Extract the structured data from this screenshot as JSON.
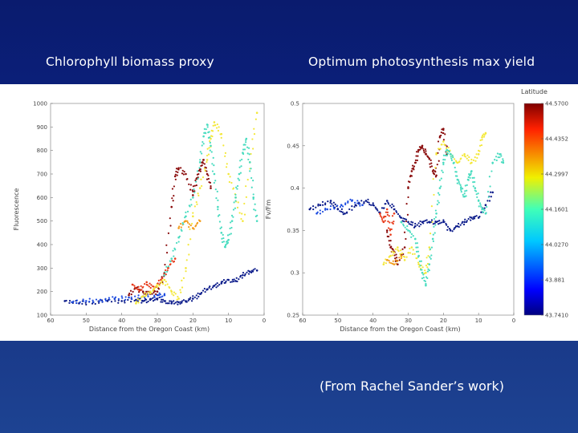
{
  "header": {
    "left_title": "Chlorophyll biomass proxy",
    "right_title": "Optimum photosynthesis max yield"
  },
  "credit": "(From Rachel Sander’s work)",
  "colors": {
    "background_top": "#0a1b6e",
    "background_bottom": "#1d4392",
    "panel": "#ffffff"
  },
  "chart_data": [
    {
      "type": "scatter",
      "title": "",
      "xlabel": "Distance from the Oregon Coast (km)",
      "ylabel": "Fluorescence",
      "xlim": [
        60,
        0
      ],
      "ylim": [
        100,
        1000
      ],
      "x_ticks": [
        60,
        50,
        40,
        30,
        20,
        10,
        0
      ],
      "y_ticks": [
        100,
        200,
        300,
        400,
        500,
        600,
        700,
        800,
        900,
        1000
      ],
      "series": [
        {
          "color": "#0a1a8a",
          "points": [
            [
              56,
              160
            ],
            [
              52,
              150
            ],
            [
              48,
              155
            ],
            [
              44,
              160
            ],
            [
              40,
              160
            ],
            [
              36,
              165
            ],
            [
              34,
              160
            ],
            [
              32,
              165
            ],
            [
              30,
              170
            ],
            [
              28,
              160
            ],
            [
              26,
              150
            ],
            [
              24,
              155
            ],
            [
              22,
              160
            ],
            [
              20,
              170
            ],
            [
              18,
              190
            ],
            [
              16,
              210
            ],
            [
              14,
              225
            ],
            [
              12,
              235
            ],
            [
              10,
              250
            ],
            [
              8,
              245
            ],
            [
              6,
              270
            ],
            [
              4,
              285
            ],
            [
              2,
              290
            ]
          ]
        },
        {
          "color": "#1c4be0",
          "points": [
            [
              54,
              155
            ],
            [
              50,
              160
            ],
            [
              46,
              165
            ],
            [
              42,
              170
            ],
            [
              38,
              175
            ],
            [
              34,
              180
            ],
            [
              30,
              185
            ],
            [
              28,
              185
            ]
          ]
        },
        {
          "color": "#8b0d0d",
          "points": [
            [
              38,
              185
            ],
            [
              36,
              215
            ],
            [
              34,
              200
            ],
            [
              32,
              190
            ],
            [
              30,
              200
            ],
            [
              28,
              280
            ],
            [
              26,
              560
            ],
            [
              25,
              690
            ],
            [
              24,
              725
            ],
            [
              22,
              700
            ],
            [
              20,
              610
            ],
            [
              19,
              680
            ],
            [
              18,
              720
            ],
            [
              17,
              760
            ],
            [
              16,
              700
            ],
            [
              15,
              640
            ]
          ]
        },
        {
          "color": "#e83a1a",
          "points": [
            [
              37,
              230
            ],
            [
              35,
              205
            ],
            [
              33,
              240
            ],
            [
              31,
              210
            ],
            [
              29,
              250
            ],
            [
              27,
              300
            ],
            [
              25,
              340
            ]
          ]
        },
        {
          "color": "#f4e83a",
          "points": [
            [
              36,
              150
            ],
            [
              34,
              180
            ],
            [
              32,
              200
            ],
            [
              30,
              220
            ],
            [
              28,
              250
            ],
            [
              26,
              200
            ],
            [
              24,
              170
            ],
            [
              22,
              300
            ],
            [
              20,
              520
            ],
            [
              18,
              640
            ],
            [
              16,
              760
            ],
            [
              15,
              850
            ],
            [
              14,
              920
            ],
            [
              12,
              870
            ],
            [
              10,
              700
            ],
            [
              8,
              600
            ],
            [
              6,
              500
            ],
            [
              4,
              750
            ],
            [
              2,
              960
            ]
          ]
        },
        {
          "color": "#f39c1a",
          "points": [
            [
              24,
              470
            ],
            [
              22,
              500
            ],
            [
              20,
              470
            ],
            [
              18,
              500
            ]
          ]
        },
        {
          "color": "#49dcc0",
          "points": [
            [
              28,
              270
            ],
            [
              26,
              340
            ],
            [
              24,
              430
            ],
            [
              22,
              520
            ],
            [
              20,
              600
            ],
            [
              18,
              750
            ],
            [
              17,
              860
            ],
            [
              16,
              910
            ],
            [
              15,
              820
            ],
            [
              14,
              700
            ],
            [
              13,
              560
            ],
            [
              12,
              450
            ],
            [
              11,
              390
            ],
            [
              10,
              420
            ],
            [
              9,
              500
            ],
            [
              8,
              600
            ],
            [
              7,
              700
            ],
            [
              6,
              790
            ],
            [
              5,
              850
            ],
            [
              4,
              750
            ],
            [
              3,
              600
            ],
            [
              2,
              500
            ]
          ]
        }
      ]
    },
    {
      "type": "scatter",
      "title": "",
      "xlabel": "Distance from the Oregon Coast (km)",
      "ylabel": "Fv/Fm",
      "xlim": [
        60,
        0
      ],
      "ylim": [
        0.25,
        0.5
      ],
      "x_ticks": [
        60,
        50,
        40,
        30,
        20,
        10,
        0
      ],
      "x_tick_labels": [
        "60",
        "50",
        "40",
        "30",
        "20",
        "10",
        "0"
      ],
      "y_ticks": [
        0.25,
        0.3,
        0.35,
        0.4,
        0.45,
        0.5
      ],
      "y_tick_labels": [
        "0.25",
        "0.3",
        "0.35",
        "0.4",
        "0.45",
        "0.5"
      ],
      "legend": {
        "title": "Latitude",
        "labels": [
          "44.5700",
          "44.4352",
          "44.2997",
          "44.1601",
          "44.0270",
          "43.881",
          "43.7410"
        ],
        "placement": "right"
      },
      "series": [
        {
          "color": "#0a1a8a",
          "points": [
            [
              58,
              0.375
            ],
            [
              55,
              0.38
            ],
            [
              52,
              0.385
            ],
            [
              50,
              0.375
            ],
            [
              48,
              0.37
            ],
            [
              45,
              0.38
            ],
            [
              42,
              0.385
            ],
            [
              40,
              0.38
            ],
            [
              38,
              0.37
            ],
            [
              36,
              0.385
            ],
            [
              34,
              0.375
            ],
            [
              32,
              0.365
            ],
            [
              30,
              0.36
            ],
            [
              28,
              0.355
            ],
            [
              26,
              0.36
            ],
            [
              24,
              0.36
            ],
            [
              22,
              0.36
            ],
            [
              20,
              0.36
            ],
            [
              18,
              0.35
            ],
            [
              16,
              0.355
            ],
            [
              14,
              0.36
            ],
            [
              12,
              0.365
            ],
            [
              10,
              0.365
            ],
            [
              8,
              0.38
            ],
            [
              6,
              0.395
            ]
          ]
        },
        {
          "color": "#1c4be0",
          "points": [
            [
              56,
              0.37
            ],
            [
              53,
              0.375
            ],
            [
              49,
              0.38
            ],
            [
              46,
              0.385
            ],
            [
              43,
              0.38
            ]
          ]
        },
        {
          "color": "#8b0d0d",
          "points": [
            [
              36,
              0.35
            ],
            [
              35,
              0.33
            ],
            [
              34,
              0.325
            ],
            [
              33,
              0.31
            ],
            [
              31,
              0.33
            ],
            [
              30,
              0.4
            ],
            [
              29,
              0.42
            ],
            [
              28,
              0.43
            ],
            [
              27,
              0.445
            ],
            [
              26,
              0.45
            ],
            [
              25,
              0.44
            ],
            [
              24,
              0.435
            ],
            [
              23,
              0.42
            ],
            [
              22,
              0.415
            ],
            [
              21,
              0.46
            ],
            [
              20,
              0.47
            ],
            [
              19,
              0.44
            ]
          ]
        },
        {
          "color": "#e83a1a",
          "points": [
            [
              38,
              0.37
            ],
            [
              37,
              0.36
            ],
            [
              36,
              0.375
            ],
            [
              35,
              0.345
            ],
            [
              34,
              0.37
            ]
          ]
        },
        {
          "color": "#f4e83a",
          "points": [
            [
              37,
              0.31
            ],
            [
              35,
              0.32
            ],
            [
              33,
              0.33
            ],
            [
              31,
              0.315
            ],
            [
              29,
              0.33
            ],
            [
              27,
              0.31
            ],
            [
              25,
              0.3
            ],
            [
              24,
              0.33
            ],
            [
              22,
              0.44
            ],
            [
              20,
              0.455
            ],
            [
              18,
              0.44
            ],
            [
              16,
              0.43
            ],
            [
              14,
              0.44
            ],
            [
              12,
              0.43
            ],
            [
              10,
              0.44
            ],
            [
              9,
              0.46
            ],
            [
              8,
              0.465
            ]
          ]
        },
        {
          "color": "#f39c1a",
          "points": [
            [
              36,
              0.315
            ],
            [
              34,
              0.31
            ],
            [
              32,
              0.32
            ]
          ]
        },
        {
          "color": "#49dcc0",
          "points": [
            [
              32,
              0.36
            ],
            [
              30,
              0.35
            ],
            [
              28,
              0.34
            ],
            [
              27,
              0.32
            ],
            [
              26,
              0.3
            ],
            [
              25,
              0.285
            ],
            [
              24,
              0.31
            ],
            [
              23,
              0.34
            ],
            [
              22,
              0.37
            ],
            [
              21,
              0.4
            ],
            [
              20,
              0.43
            ],
            [
              19,
              0.445
            ],
            [
              18,
              0.44
            ],
            [
              17,
              0.43
            ],
            [
              16,
              0.41
            ],
            [
              15,
              0.4
            ],
            [
              14,
              0.39
            ],
            [
              13,
              0.41
            ],
            [
              12,
              0.42
            ],
            [
              11,
              0.4
            ],
            [
              10,
              0.385
            ],
            [
              9,
              0.375
            ],
            [
              8,
              0.37
            ],
            [
              6,
              0.43
            ],
            [
              4,
              0.44
            ],
            [
              3,
              0.43
            ]
          ]
        }
      ]
    }
  ]
}
